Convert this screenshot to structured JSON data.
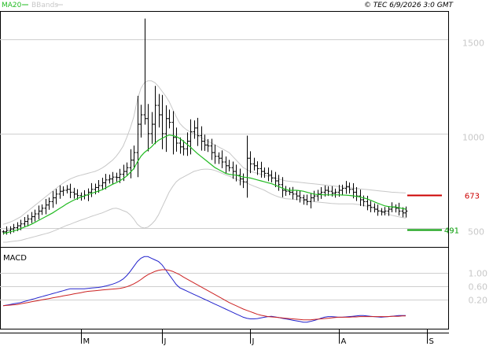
{
  "header": {
    "legend_ma": "MA20",
    "legend_bbands": "BBands",
    "stamp": "© TEC 6/9/2026 3:0 GMT"
  },
  "macd_panel": {
    "title": "MACD"
  },
  "colors": {
    "ma": "#22bb22",
    "bbands": "#c8c8c8",
    "macd_line": "#2222cc",
    "signal_line": "#cc2222",
    "resistance": "#cc0000",
    "support": "#009900",
    "bars": "#000000",
    "grid": "#cfcfcf"
  },
  "chart_data": [
    {
      "type": "ohlc",
      "y_ticks": [
        "1500",
        "1000",
        "500"
      ],
      "y_tick_values": [
        1500,
        1000,
        500
      ],
      "x_ticks": [
        "M",
        "J",
        "J",
        "A",
        "S"
      ],
      "x_tick_index": [
        22,
        45,
        70,
        95,
        120
      ],
      "levels": [
        {
          "value": 673,
          "label": "673",
          "kind": "resistance"
        },
        {
          "value": 491,
          "label": "491",
          "kind": "support"
        }
      ],
      "close": [
        480,
        488,
        495,
        502,
        512,
        522,
        535,
        548,
        560,
        575,
        590,
        605,
        622,
        640,
        660,
        680,
        695,
        700,
        705,
        690,
        680,
        672,
        668,
        675,
        690,
        705,
        715,
        725,
        740,
        755,
        760,
        770,
        768,
        785,
        800,
        820,
        860,
        900,
        1050,
        1100,
        1080,
        1000,
        1050,
        1150,
        1100,
        1000,
        1080,
        1060,
        980,
        950,
        930,
        920,
        960,
        1010,
        1030,
        990,
        960,
        940,
        935,
        900,
        880,
        870,
        850,
        830,
        820,
        800,
        780,
        760,
        745,
        870,
        840,
        830,
        815,
        800,
        790,
        780,
        765,
        750,
        730,
        700,
        695,
        690,
        680,
        670,
        660,
        650,
        640,
        660,
        670,
        680,
        690,
        700,
        695,
        685,
        690,
        700,
        710,
        720,
        705,
        690,
        670,
        650,
        640,
        620,
        610,
        600,
        590,
        585,
        590,
        600,
        610,
        605,
        590,
        580,
        590
      ],
      "ma20": [
        472,
        475,
        480,
        485,
        490,
        497,
        505,
        512,
        520,
        530,
        540,
        550,
        560,
        570,
        580,
        592,
        604,
        616,
        628,
        638,
        648,
        656,
        664,
        670,
        677,
        684,
        690,
        696,
        703,
        712,
        722,
        732,
        740,
        750,
        762,
        776,
        795,
        815,
        850,
        880,
        900,
        915,
        930,
        950,
        965,
        975,
        985,
        993,
        990,
        985,
        975,
        960,
        945,
        930,
        912,
        895,
        880,
        865,
        850,
        835,
        820,
        810,
        800,
        790,
        785,
        782,
        780,
        775,
        770,
        768,
        765,
        760,
        755,
        750,
        745,
        740,
        735,
        728,
        720,
        712,
        705,
        700,
        700,
        700,
        698,
        695,
        690,
        685,
        680,
        678,
        677,
        676,
        676,
        676,
        676,
        676,
        675,
        674,
        673,
        671,
        668,
        665,
        660,
        655,
        648,
        640,
        632,
        625,
        618,
        614,
        612,
        612,
        608,
        604,
        600
      ],
      "upper_band": [
        520,
        525,
        532,
        540,
        550,
        560,
        575,
        590,
        605,
        620,
        635,
        650,
        665,
        680,
        695,
        710,
        725,
        738,
        750,
        760,
        768,
        775,
        780,
        785,
        790,
        795,
        800,
        808,
        818,
        830,
        845,
        860,
        880,
        905,
        935,
        980,
        1030,
        1090,
        1180,
        1240,
        1270,
        1280,
        1280,
        1270,
        1250,
        1225,
        1200,
        1170,
        1130,
        1090,
        1055,
        1035,
        1020,
        1010,
        1000,
        990,
        980,
        970,
        960,
        950,
        940,
        930,
        920,
        910,
        900,
        880,
        860,
        840,
        820,
        810,
        800,
        795,
        790,
        785,
        780,
        775,
        770,
        765,
        760,
        755,
        750,
        748,
        746,
        744,
        742,
        740,
        738,
        736,
        734,
        732,
        730,
        728,
        726,
        724,
        722,
        720,
        718,
        716,
        714,
        712,
        710,
        708,
        706,
        704,
        702,
        700,
        698,
        696,
        694,
        692,
        690,
        689,
        688,
        687,
        686
      ],
      "lower_band": [
        425,
        425,
        428,
        430,
        432,
        435,
        440,
        445,
        450,
        455,
        460,
        465,
        470,
        475,
        482,
        490,
        498,
        506,
        514,
        520,
        528,
        535,
        542,
        548,
        555,
        562,
        568,
        574,
        580,
        588,
        596,
        603,
        605,
        600,
        592,
        585,
        570,
        548,
        520,
        505,
        500,
        505,
        520,
        540,
        570,
        610,
        650,
        690,
        720,
        745,
        760,
        770,
        780,
        790,
        800,
        805,
        810,
        812,
        812,
        810,
        805,
        798,
        790,
        782,
        775,
        768,
        760,
        752,
        745,
        738,
        730,
        722,
        715,
        708,
        700,
        690,
        680,
        672,
        665,
        660,
        656,
        654,
        653,
        652,
        650,
        648,
        645,
        642,
        640,
        638,
        636,
        634,
        632,
        630,
        629,
        628,
        628,
        628,
        628,
        628,
        626,
        624,
        620,
        616,
        610,
        603,
        596,
        590,
        582,
        574,
        568,
        564,
        560,
        556,
        553
      ],
      "macd": [
        0,
        2,
        4,
        6,
        8,
        10,
        13,
        16,
        19,
        22,
        25,
        28,
        31,
        34,
        37,
        40,
        43,
        46,
        49,
        52,
        52,
        52,
        52,
        52,
        53,
        54,
        55,
        56,
        58,
        60,
        63,
        66,
        70,
        75,
        82,
        92,
        105,
        120,
        135,
        145,
        150,
        150,
        145,
        140,
        135,
        125,
        110,
        95,
        80,
        65,
        55,
        50,
        45,
        40,
        35,
        30,
        25,
        20,
        15,
        10,
        5,
        0,
        -5,
        -10,
        -15,
        -20,
        -25,
        -30,
        -35,
        -38,
        -40,
        -40,
        -39,
        -37,
        -35,
        -33,
        -32,
        -34,
        -36,
        -38,
        -40,
        -42,
        -44,
        -46,
        -48,
        -50,
        -50,
        -48,
        -45,
        -42,
        -38,
        -35,
        -33,
        -33,
        -34,
        -35,
        -35,
        -34,
        -33,
        -32,
        -31,
        -30,
        -30,
        -31,
        -32,
        -33,
        -34,
        -35,
        -34,
        -33,
        -32,
        -31,
        -30,
        -30,
        -30
      ],
      "signal": [
        0,
        1,
        2,
        3,
        4,
        6,
        8,
        10,
        12,
        14,
        16,
        18,
        20,
        22,
        24,
        26,
        28,
        30,
        32,
        34,
        36,
        38,
        40,
        42,
        44,
        45,
        46,
        47,
        48,
        49,
        50,
        51,
        52,
        53,
        55,
        58,
        62,
        67,
        73,
        80,
        88,
        95,
        100,
        105,
        108,
        110,
        110,
        108,
        105,
        100,
        95,
        88,
        82,
        76,
        70,
        64,
        58,
        52,
        46,
        40,
        34,
        28,
        22,
        16,
        10,
        5,
        0,
        -5,
        -10,
        -14,
        -18,
        -22,
        -26,
        -29,
        -31,
        -33,
        -34,
        -35,
        -36,
        -37,
        -38,
        -39,
        -40,
        -41,
        -42,
        -43,
        -43,
        -43,
        -42,
        -41,
        -40,
        -39,
        -38,
        -37,
        -36,
        -35,
        -35,
        -35,
        -35,
        -34,
        -34,
        -33,
        -33,
        -33,
        -33,
        -33,
        -33,
        -33,
        -33,
        -33,
        -32,
        -32,
        -32,
        -31,
        -31
      ]
    },
    {
      "type": "line",
      "title": "MACD",
      "y_ticks": [
        "1.00",
        "0.60",
        "0.20"
      ],
      "y_tick_values": [
        100,
        60,
        20
      ],
      "series": [
        {
          "key": "macd",
          "color": "#2222cc"
        },
        {
          "key": "signal",
          "color": "#cc2222"
        }
      ]
    }
  ]
}
